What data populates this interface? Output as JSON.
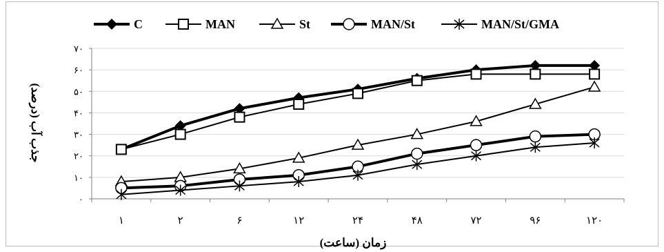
{
  "chart_data": {
    "type": "line",
    "title": "",
    "xlabel": "زمان (ساعت)",
    "ylabel": "جذب آب (درصد)",
    "categories": [
      "۱",
      "۲",
      "۶",
      "۱۲",
      "۲۴",
      "۴۸",
      "۷۲",
      "۹۶",
      "۱۲۰"
    ],
    "ylim": [
      0,
      70
    ],
    "yticks": [
      0,
      10,
      20,
      30,
      40,
      50,
      60,
      70
    ],
    "ytick_labels": [
      "۰",
      "۱۰",
      "۲۰",
      "۳۰",
      "۴۰",
      "۵۰",
      "۶۰",
      "۷۰"
    ],
    "grid": "horizontal",
    "legend_position": "top",
    "series": [
      {
        "name": "C",
        "marker": "filled-diamond",
        "line": "thick",
        "values": [
          23,
          34,
          42,
          47,
          51,
          56,
          60,
          62,
          62
        ]
      },
      {
        "name": "MAN",
        "marker": "open-square",
        "line": "thin",
        "values": [
          23,
          30,
          38,
          44,
          49,
          55,
          58,
          58,
          58
        ]
      },
      {
        "name": "St",
        "marker": "open-triangle",
        "line": "thin",
        "values": [
          8,
          10,
          14,
          19,
          25,
          30,
          36,
          44,
          52
        ]
      },
      {
        "name": "MAN/St",
        "marker": "open-circle",
        "line": "thick",
        "values": [
          5,
          6,
          9,
          11,
          15,
          21,
          25,
          29,
          30
        ]
      },
      {
        "name": "MAN/St/GMA",
        "marker": "asterisk",
        "line": "thin",
        "values": [
          2,
          4,
          6,
          8,
          11,
          16,
          20,
          24,
          26
        ]
      }
    ]
  },
  "colors": {
    "line": "#000000",
    "grid": "#d9d9d9",
    "axis": "#808080",
    "frame": "#bfbfbf"
  }
}
